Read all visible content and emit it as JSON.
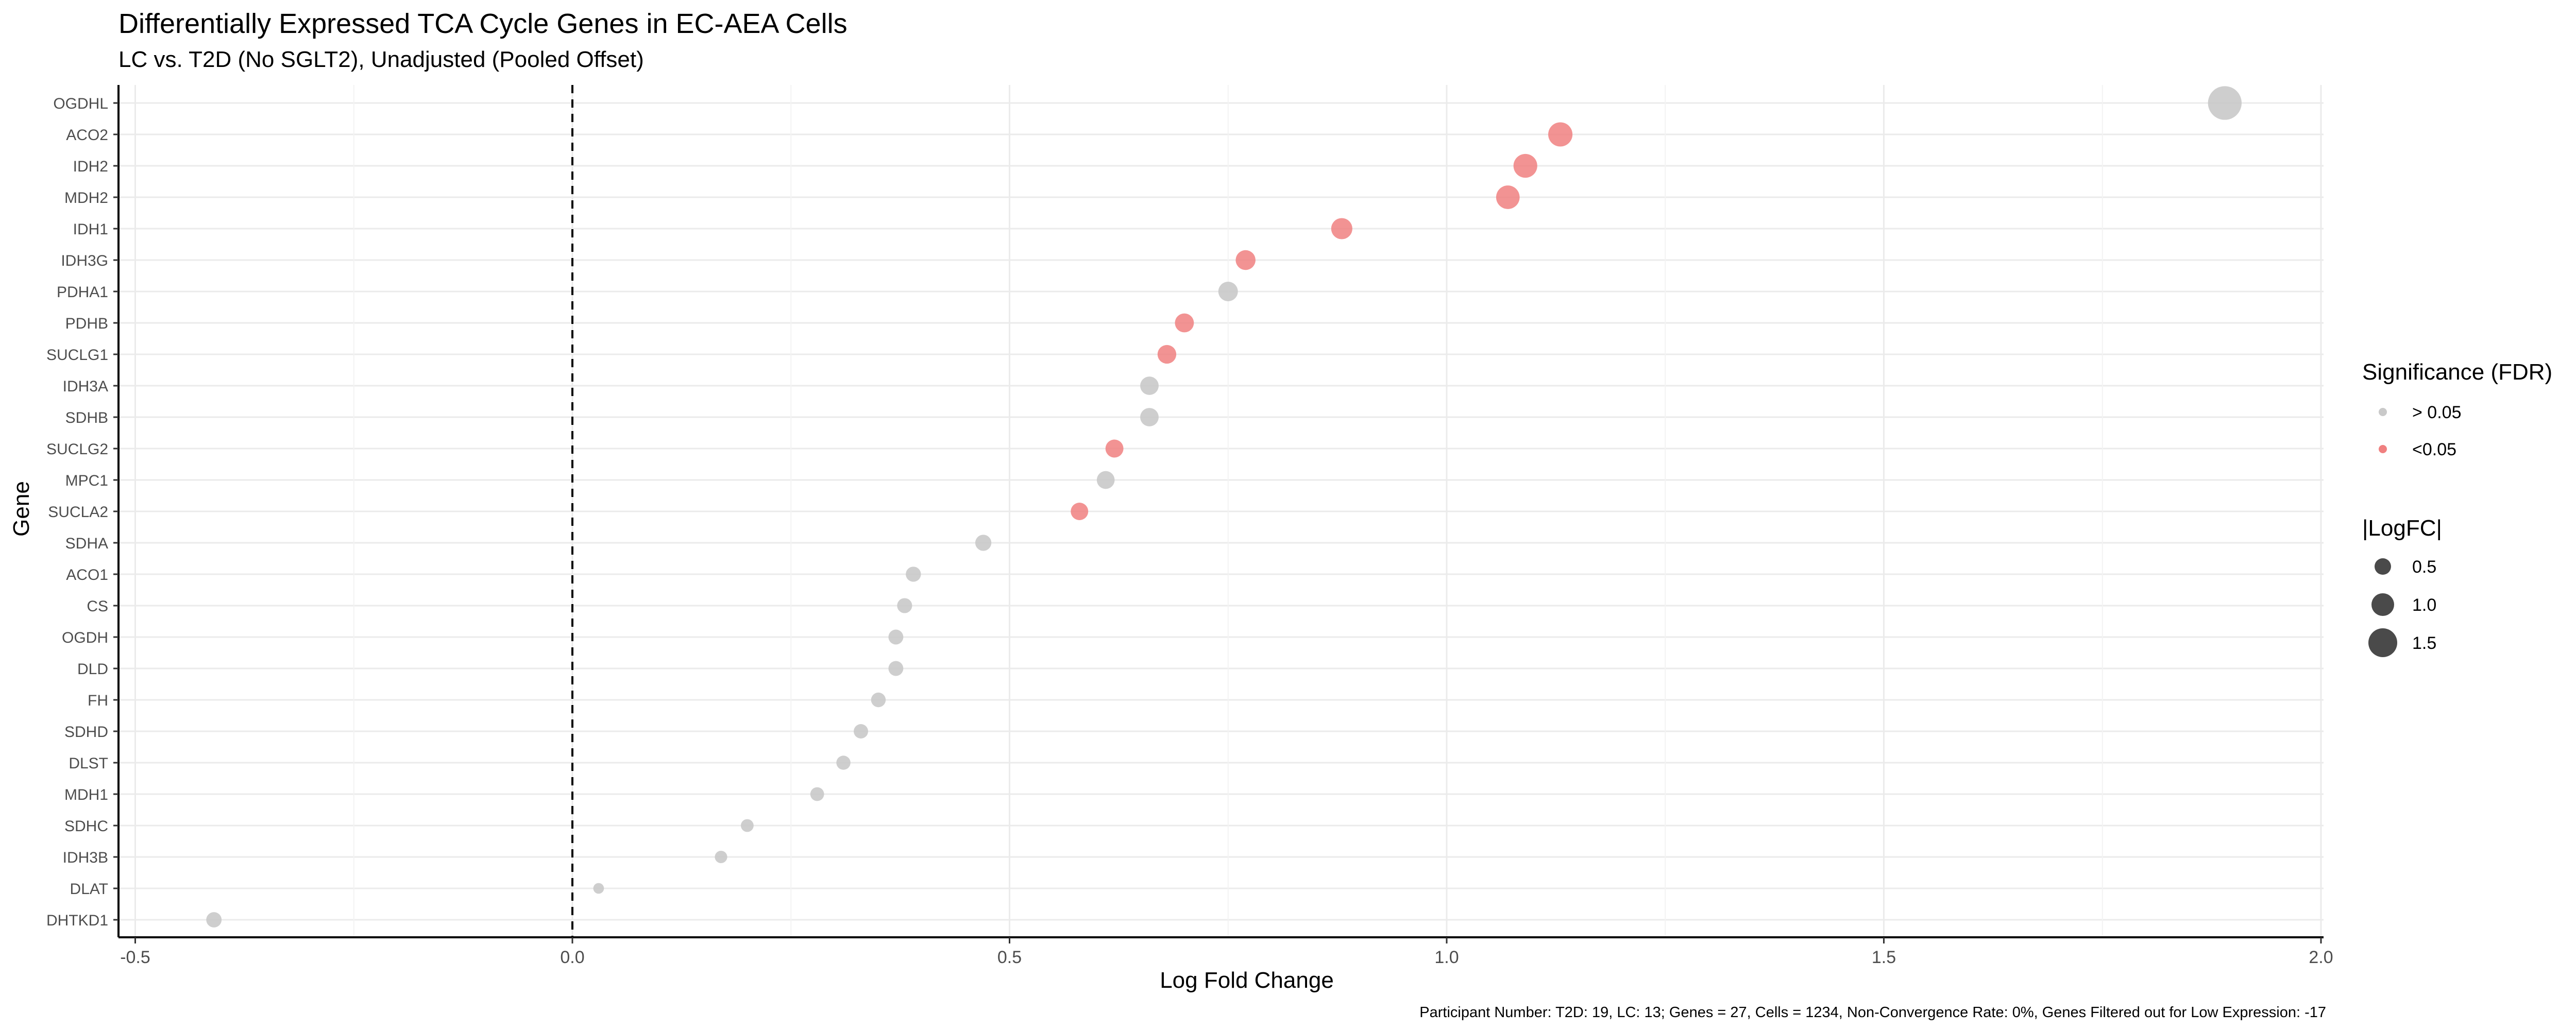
{
  "chart_data": {
    "type": "scatter",
    "title": "Differentially Expressed TCA Cycle Genes in EC-AEA Cells",
    "subtitle": "LC vs. T2D (No SGLT2), Unadjusted (Pooled Offset)",
    "xlabel": "Log Fold Change",
    "ylabel": "Gene",
    "xlim": [
      -0.52,
      2.0
    ],
    "xticks": [
      -0.5,
      0.0,
      0.5,
      1.0,
      1.5,
      2.0
    ],
    "xtick_labels": [
      "-0.5",
      "0.0",
      "0.5",
      "1.0",
      "1.5",
      "2.0"
    ],
    "reference_line_x": 0,
    "grid": true,
    "colors": {
      "ns": "#c9c9c9",
      "sig": "#f08080",
      "size_legend": "#4a4a4a"
    },
    "points": [
      {
        "gene": "OGDHL",
        "logfc": 1.89,
        "sig": false
      },
      {
        "gene": "ACO2",
        "logfc": 1.13,
        "sig": true
      },
      {
        "gene": "IDH2",
        "logfc": 1.09,
        "sig": true
      },
      {
        "gene": "MDH2",
        "logfc": 1.07,
        "sig": true
      },
      {
        "gene": "IDH1",
        "logfc": 0.88,
        "sig": true
      },
      {
        "gene": "IDH3G",
        "logfc": 0.77,
        "sig": true
      },
      {
        "gene": "PDHA1",
        "logfc": 0.75,
        "sig": false
      },
      {
        "gene": "PDHB",
        "logfc": 0.7,
        "sig": true
      },
      {
        "gene": "SUCLG1",
        "logfc": 0.68,
        "sig": true
      },
      {
        "gene": "IDH3A",
        "logfc": 0.66,
        "sig": false
      },
      {
        "gene": "SDHB",
        "logfc": 0.66,
        "sig": false
      },
      {
        "gene": "SUCLG2",
        "logfc": 0.62,
        "sig": true
      },
      {
        "gene": "MPC1",
        "logfc": 0.61,
        "sig": false
      },
      {
        "gene": "SUCLA2",
        "logfc": 0.58,
        "sig": true
      },
      {
        "gene": "SDHA",
        "logfc": 0.47,
        "sig": false
      },
      {
        "gene": "ACO1",
        "logfc": 0.39,
        "sig": false
      },
      {
        "gene": "CS",
        "logfc": 0.38,
        "sig": false
      },
      {
        "gene": "OGDH",
        "logfc": 0.37,
        "sig": false
      },
      {
        "gene": "DLD",
        "logfc": 0.37,
        "sig": false
      },
      {
        "gene": "FH",
        "logfc": 0.35,
        "sig": false
      },
      {
        "gene": "SDHD",
        "logfc": 0.33,
        "sig": false
      },
      {
        "gene": "DLST",
        "logfc": 0.31,
        "sig": false
      },
      {
        "gene": "MDH1",
        "logfc": 0.28,
        "sig": false
      },
      {
        "gene": "SDHC",
        "logfc": 0.2,
        "sig": false
      },
      {
        "gene": "IDH3B",
        "logfc": 0.17,
        "sig": false
      },
      {
        "gene": "DLAT",
        "logfc": 0.03,
        "sig": false
      },
      {
        "gene": "DHTKD1",
        "logfc": -0.41,
        "sig": false
      }
    ],
    "legend": {
      "color_title": "Significance (FDR)",
      "color_items": [
        {
          "label": "> 0.05",
          "sig": false
        },
        {
          "label": "<0.05",
          "sig": true
        }
      ],
      "size_title": "|LogFC|",
      "size_items": [
        {
          "label": "0.5",
          "value": 0.5
        },
        {
          "label": "1.0",
          "value": 1.0
        },
        {
          "label": "1.5",
          "value": 1.5
        }
      ]
    },
    "caption": "Participant Number: T2D: 19, LC: 13; Genes = 27, Cells = 1234, Non-Convergence Rate: 0%, Genes Filtered out for Low Expression: -17"
  }
}
